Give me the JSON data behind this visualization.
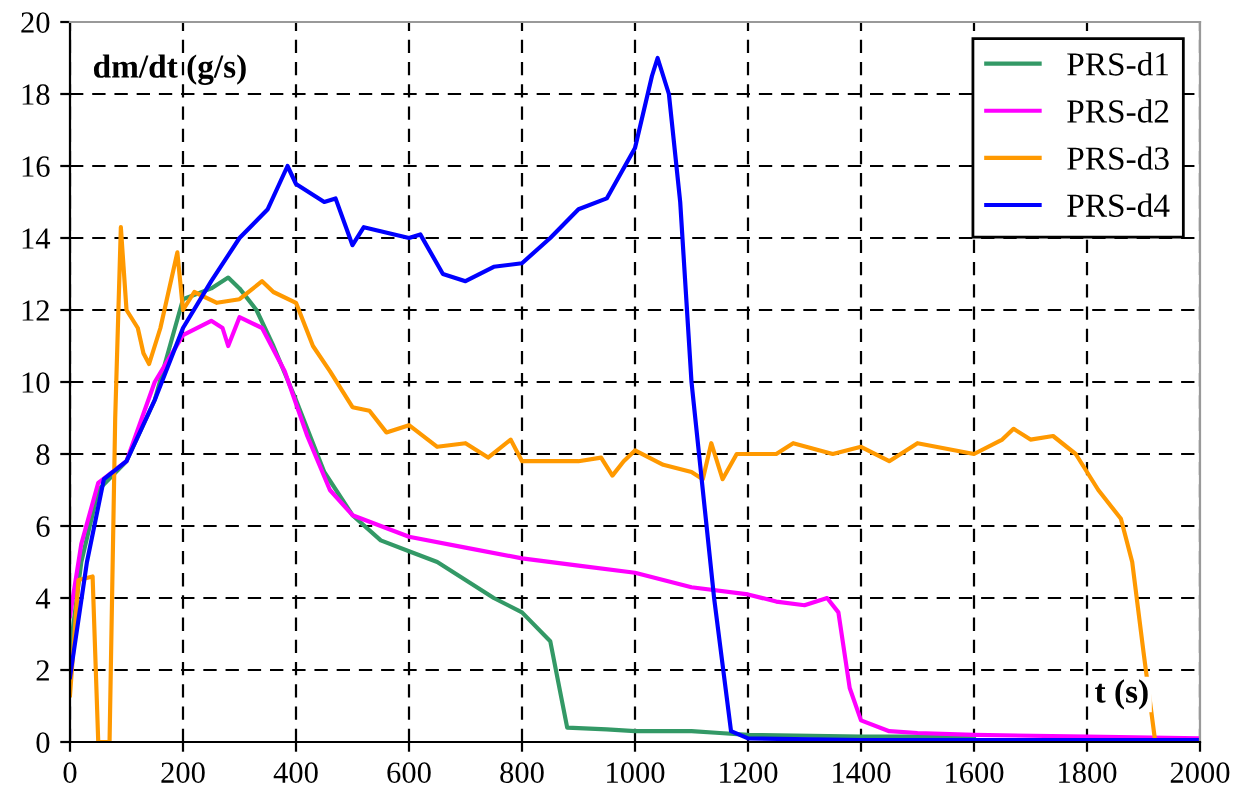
{
  "chart_data": {
    "type": "line",
    "xlabel": "t (s)",
    "ylabel": "dm/dt (g/s)",
    "xlim": [
      0,
      2000
    ],
    "ylim": [
      0,
      20
    ],
    "xticks": [
      0,
      200,
      400,
      600,
      800,
      1000,
      1200,
      1400,
      1600,
      1800,
      2000
    ],
    "yticks": [
      0,
      2,
      4,
      6,
      8,
      10,
      12,
      14,
      16,
      18,
      20
    ],
    "grid": true,
    "legend": "top right",
    "line_style": "solid",
    "marker": "none",
    "series": [
      {
        "name": "PRS-d1",
        "color": "#339966",
        "x": [
          0,
          20,
          50,
          100,
          150,
          200,
          250,
          280,
          300,
          330,
          360,
          400,
          450,
          500,
          550,
          600,
          650,
          700,
          750,
          800,
          850,
          870,
          880,
          950,
          1000,
          1100,
          1150,
          1200,
          1400,
          1600
        ],
        "values": [
          2.5,
          5,
          7,
          7.8,
          9.5,
          12.3,
          12.6,
          12.9,
          12.6,
          12,
          11,
          9.5,
          7.5,
          6.3,
          5.6,
          5.3,
          5,
          4.5,
          4,
          3.6,
          2.8,
          1.2,
          0.4,
          0.35,
          0.3,
          0.3,
          0.25,
          0.2,
          0.15,
          0.15
        ]
      },
      {
        "name": "PRS-d2",
        "color": "#ff00ff",
        "x": [
          0,
          20,
          50,
          100,
          150,
          200,
          250,
          270,
          280,
          300,
          340,
          380,
          420,
          460,
          500,
          550,
          600,
          700,
          800,
          900,
          1000,
          1050,
          1100,
          1200,
          1250,
          1300,
          1340,
          1360,
          1380,
          1400,
          1450,
          1500,
          1600,
          1800,
          2000
        ],
        "values": [
          3.5,
          5.5,
          7.2,
          7.8,
          10,
          11.3,
          11.7,
          11.5,
          11,
          11.8,
          11.5,
          10.3,
          8.5,
          7,
          6.3,
          6,
          5.7,
          5.4,
          5.1,
          4.9,
          4.7,
          4.5,
          4.3,
          4.1,
          3.9,
          3.8,
          4,
          3.6,
          1.5,
          0.6,
          0.3,
          0.25,
          0.2,
          0.15,
          0.1
        ]
      },
      {
        "name": "PRS-d3",
        "color": "#ff9900",
        "x": [
          0,
          15,
          40,
          50,
          70,
          80,
          90,
          100,
          120,
          130,
          140,
          160,
          190,
          200,
          220,
          260,
          300,
          340,
          360,
          400,
          430,
          460,
          500,
          530,
          560,
          600,
          650,
          700,
          740,
          780,
          800,
          850,
          900,
          940,
          960,
          980,
          1000,
          1050,
          1100,
          1120,
          1135,
          1155,
          1180,
          1250,
          1280,
          1350,
          1400,
          1450,
          1500,
          1600,
          1650,
          1670,
          1700,
          1740,
          1780,
          1820,
          1860,
          1880,
          1900,
          1920
        ],
        "values": [
          1.3,
          4.5,
          4.6,
          0,
          0,
          9,
          14.3,
          12,
          11.5,
          10.8,
          10.5,
          11.5,
          13.6,
          12,
          12.5,
          12.2,
          12.3,
          12.8,
          12.5,
          12.2,
          11,
          10.3,
          9.3,
          9.2,
          8.6,
          8.8,
          8.2,
          8.3,
          7.9,
          8.4,
          7.8,
          7.8,
          7.8,
          7.9,
          7.4,
          7.8,
          8.1,
          7.7,
          7.5,
          7.3,
          8.3,
          7.3,
          8,
          8,
          8.3,
          8,
          8.2,
          7.8,
          8.3,
          8,
          8.4,
          8.7,
          8.4,
          8.5,
          8,
          7,
          6.2,
          5,
          2.5,
          0.1
        ]
      },
      {
        "name": "PRS-d4",
        "color": "#0000ff",
        "x": [
          0,
          30,
          60,
          100,
          150,
          200,
          250,
          300,
          350,
          385,
          400,
          450,
          470,
          500,
          520,
          600,
          620,
          660,
          700,
          750,
          800,
          850,
          900,
          950,
          1000,
          1030,
          1040,
          1060,
          1080,
          1100,
          1140,
          1170,
          1200,
          1400,
          2000
        ],
        "values": [
          1.8,
          5,
          7.3,
          7.8,
          9.5,
          11.5,
          12.8,
          14,
          14.8,
          16,
          15.5,
          15,
          15.1,
          13.8,
          14.3,
          14,
          14.1,
          13,
          12.8,
          13.2,
          13.3,
          14,
          14.8,
          15.1,
          16.5,
          18.5,
          19,
          18,
          15,
          10,
          4,
          0.3,
          0.1,
          0.05,
          0.05
        ]
      }
    ]
  }
}
